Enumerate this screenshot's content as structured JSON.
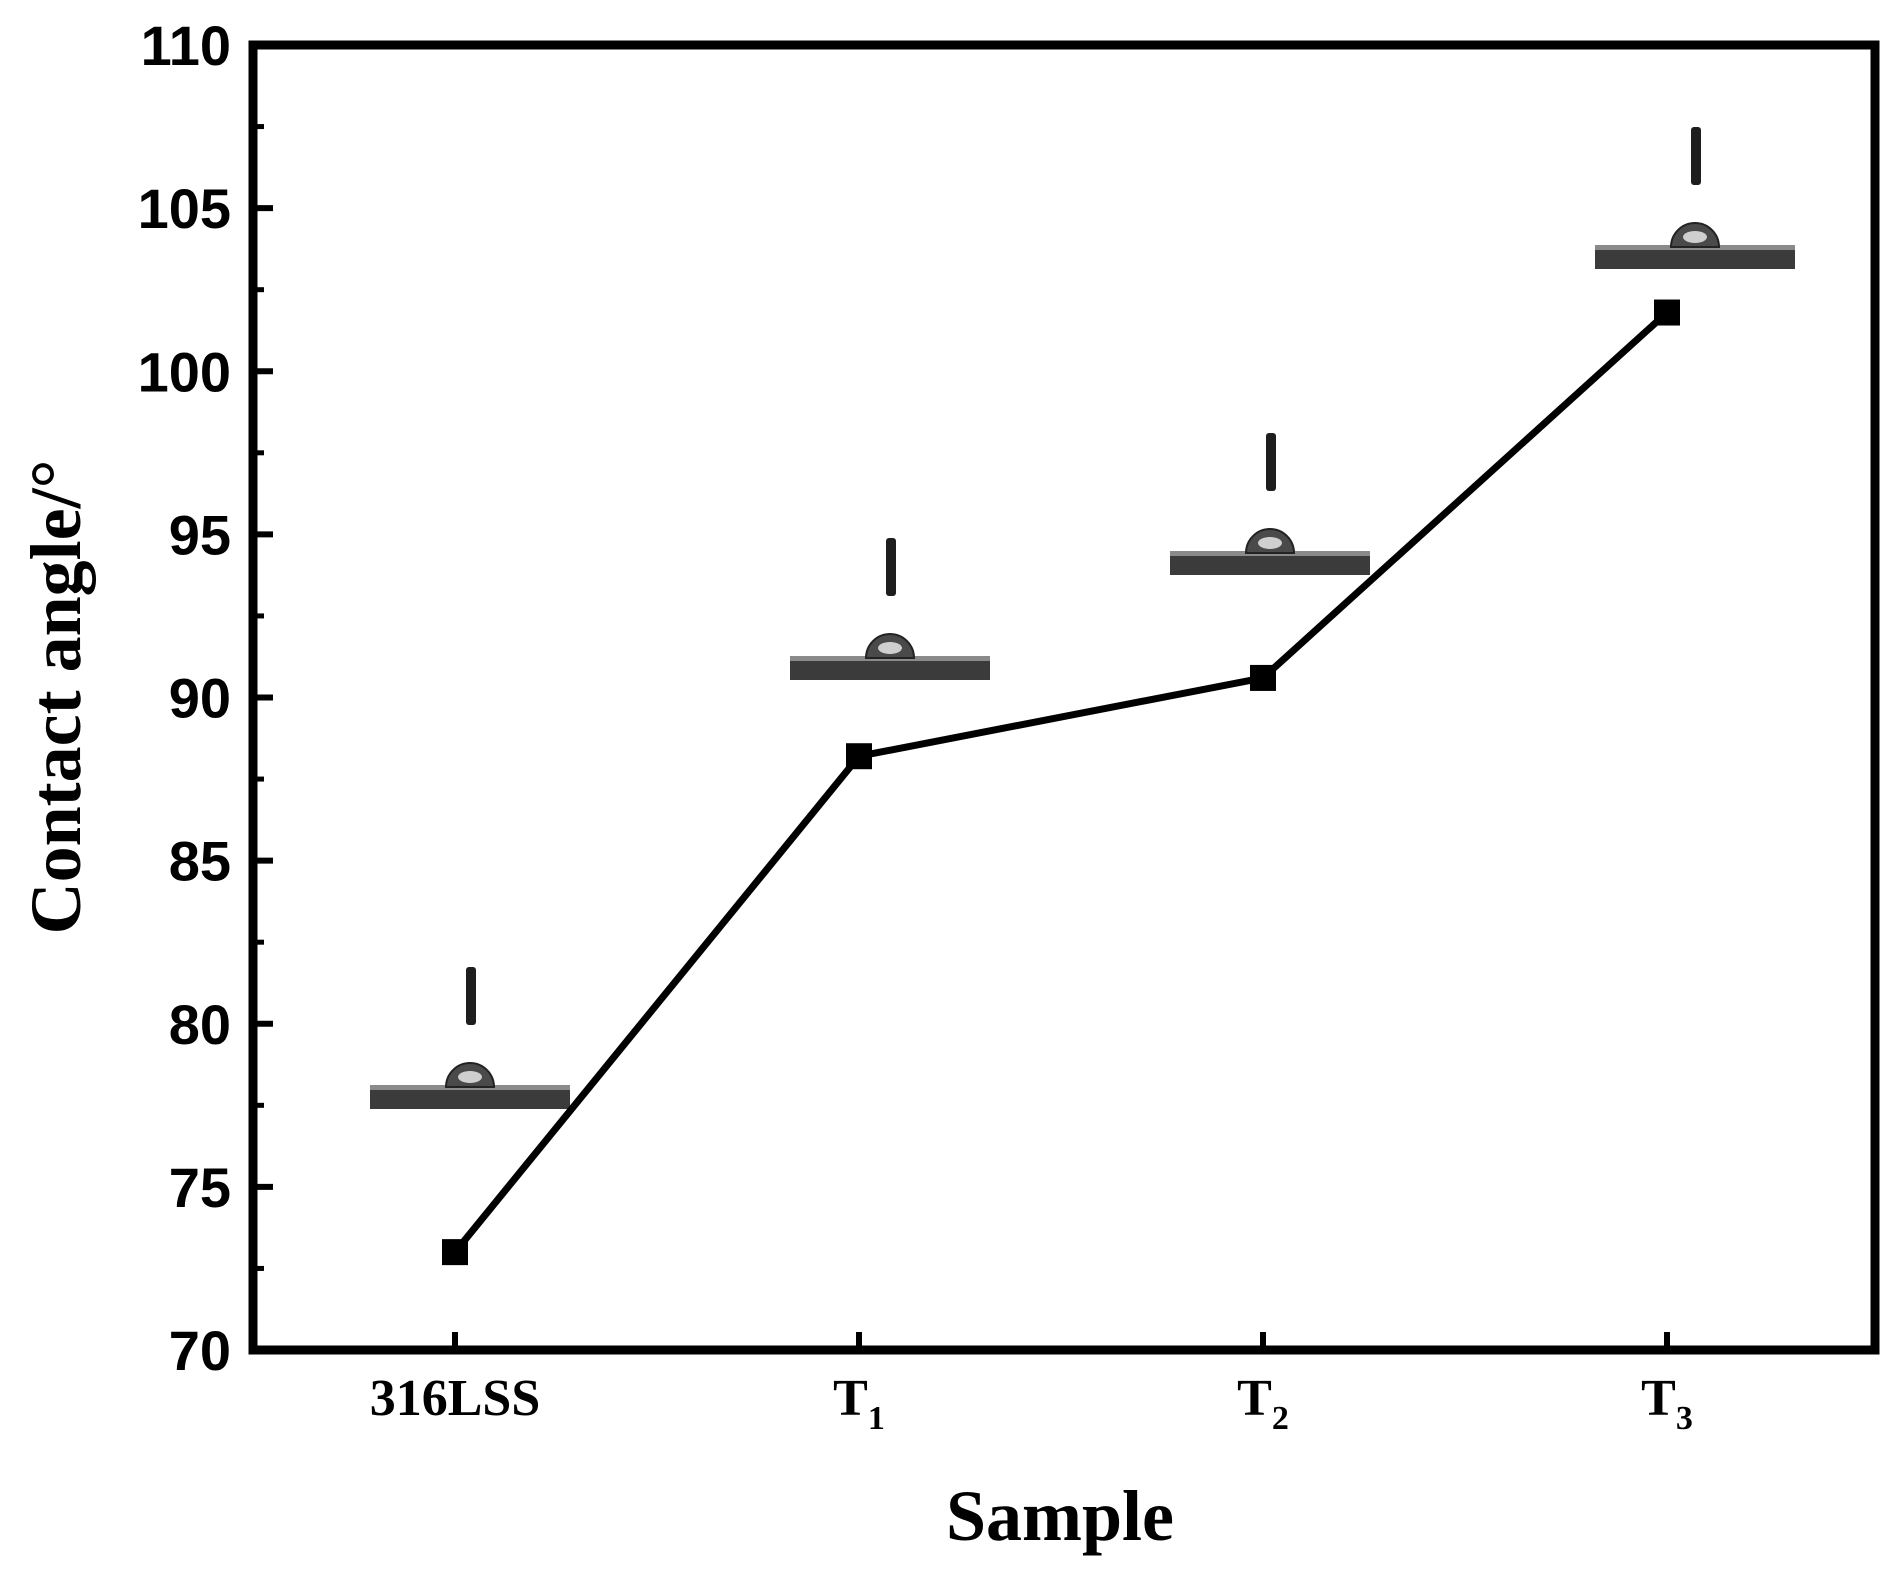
{
  "chart_data": {
    "type": "line",
    "title": "",
    "xlabel": "Sample",
    "ylabel": "Contact angle/°",
    "categories": [
      {
        "base": "316LSS",
        "sub": ""
      },
      {
        "base": "T",
        "sub": "1"
      },
      {
        "base": "T",
        "sub": "2"
      },
      {
        "base": "T",
        "sub": "3"
      }
    ],
    "values": [
      73.0,
      88.2,
      90.6,
      101.8
    ],
    "ylim": [
      70,
      110
    ],
    "yticks": [
      70,
      75,
      80,
      85,
      90,
      95,
      100,
      105,
      110
    ],
    "y_minor_step": 2.5,
    "marker": "square",
    "grid": false,
    "legend": "none",
    "line_color": "#000000",
    "inset_images": [
      {
        "category": "316LSS",
        "depicts": "water droplet on substrate with dispensing needle"
      },
      {
        "category": "T1",
        "depicts": "water droplet on substrate with dispensing needle"
      },
      {
        "category": "T2",
        "depicts": "water droplet on substrate with dispensing needle"
      },
      {
        "category": "T3",
        "depicts": "water droplet on substrate with dispensing needle"
      }
    ]
  }
}
